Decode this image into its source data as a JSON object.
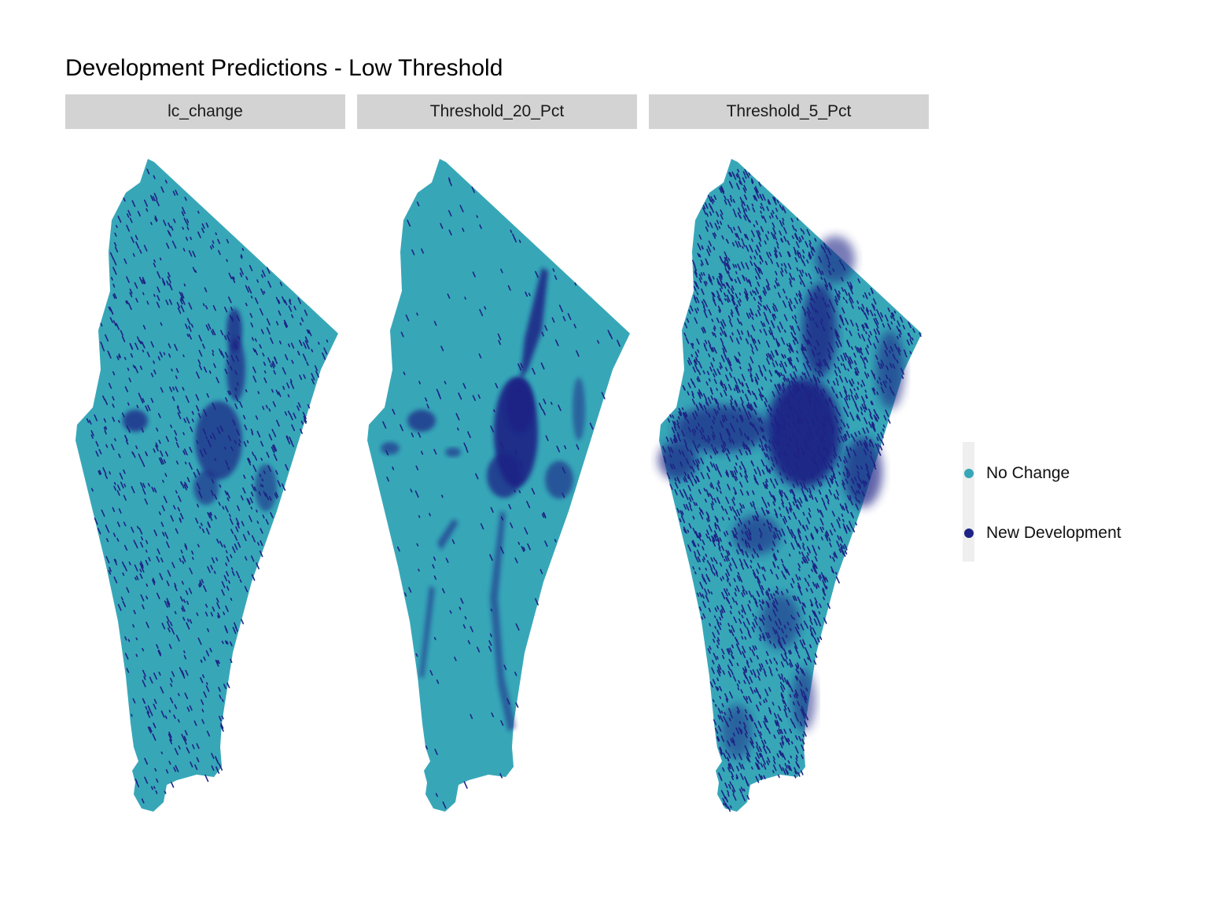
{
  "title": "Development Predictions - Low Threshold",
  "facets": [
    "lc_change",
    "Threshold_20_Pct",
    "Threshold_5_Pct"
  ],
  "legend": {
    "items": [
      {
        "label": "No Change",
        "color": "#37a7b8"
      },
      {
        "label": "New Development",
        "color": "#1e2385"
      }
    ]
  }
}
